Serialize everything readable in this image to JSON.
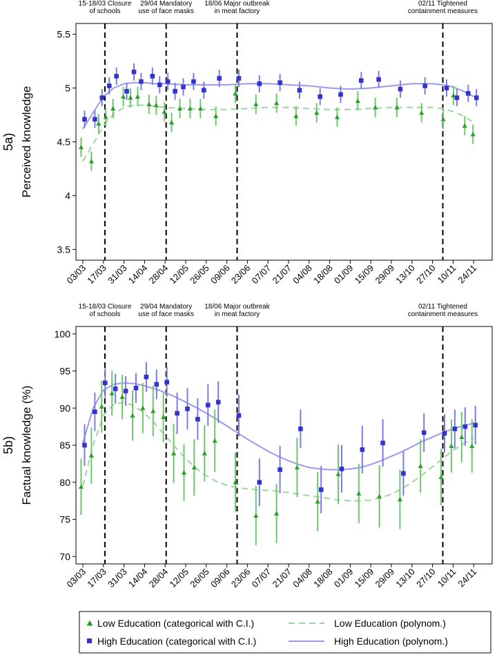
{
  "colors": {
    "low": "#2ca02c",
    "low_ci": "#6cc86c",
    "low_curve": "#9fd49f",
    "high": "#3333cc",
    "high_ci": "#7a7ae8",
    "high_curve": "#9a9ae8"
  },
  "chart_data": [
    {
      "id": "5a",
      "type": "scatter",
      "panel_label": "5a)",
      "ylabel": "Perceived knowledge",
      "ylim": [
        3.4,
        5.6
      ],
      "yticks": [
        3.5,
        4,
        4.5,
        5,
        5.5
      ],
      "ytick_labels": [
        "3.5",
        "4",
        "4.5",
        "5",
        "5.5"
      ],
      "x_labels": [
        "03/03",
        "17/03",
        "31/03",
        "14/04",
        "28/04",
        "12/05",
        "26/05",
        "09/06",
        "23/06",
        "07/07",
        "21/07",
        "04/08",
        "18/08",
        "01/09",
        "15/09",
        "29/09",
        "13/10",
        "27/10",
        "10/11",
        "24/11"
      ],
      "events": [
        {
          "week": 2.15,
          "label": "15-18/03 Closure\nof schools"
        },
        {
          "week": 8.1,
          "label": "29/04 Mandatory\nuse of face masks"
        },
        {
          "week": 15.0,
          "label": "18/06 Major outbreak\nin meat factory"
        },
        {
          "week": 35.0,
          "label": "02/11 Tightened\ncontainment measures"
        }
      ],
      "series": [
        {
          "name": "Low Education",
          "marker": "triangle",
          "x": [
            0,
            1,
            1.7,
            2.4,
            3.1,
            4.1,
            4.8,
            5.5,
            6.6,
            7.3,
            8.1,
            8.8,
            9.6,
            10.6,
            11.6,
            13.1,
            15.0,
            17.0,
            19.0,
            20.9,
            22.9,
            24.9,
            26.9,
            28.6,
            30.7,
            33.1,
            35.2,
            36.2,
            37.3,
            38.1
          ],
          "y": [
            4.45,
            4.32,
            4.67,
            4.73,
            4.81,
            4.92,
            4.91,
            4.92,
            4.85,
            4.84,
            4.78,
            4.68,
            4.81,
            4.81,
            4.81,
            4.74,
            4.95,
            4.85,
            4.86,
            4.74,
            4.77,
            4.73,
            4.88,
            4.82,
            4.82,
            4.77,
            4.71,
            4.93,
            4.65,
            4.57
          ],
          "ci": [
            0.09,
            0.09,
            0.09,
            0.09,
            0.09,
            0.09,
            0.09,
            0.09,
            0.09,
            0.09,
            0.09,
            0.09,
            0.09,
            0.09,
            0.09,
            0.09,
            0.09,
            0.09,
            0.09,
            0.09,
            0.09,
            0.09,
            0.09,
            0.09,
            0.09,
            0.09,
            0.09,
            0.09,
            0.09,
            0.09
          ]
        },
        {
          "name": "High Education",
          "marker": "square",
          "x": [
            0,
            1,
            1.7,
            2.4,
            3.1,
            4.1,
            4.8,
            5.5,
            6.6,
            7.3,
            8.1,
            8.8,
            9.6,
            10.6,
            11.6,
            13.1,
            15.0,
            17.0,
            19.0,
            20.9,
            22.9,
            24.9,
            26.9,
            28.6,
            30.7,
            33.1,
            35.2,
            36.2,
            37.3,
            38.1
          ],
          "y": [
            4.71,
            4.71,
            4.91,
            5.02,
            5.11,
            4.97,
            5.15,
            5.06,
            5.11,
            5.03,
            5.06,
            4.97,
            5.01,
            5.06,
            4.98,
            5.09,
            5.09,
            5.04,
            5.05,
            4.98,
            4.92,
            4.94,
            5.07,
            5.08,
            4.99,
            5.02,
            5.0,
            4.91,
            4.95,
            4.91
          ],
          "ci": [
            0.08,
            0.08,
            0.08,
            0.08,
            0.08,
            0.08,
            0.08,
            0.08,
            0.08,
            0.08,
            0.08,
            0.08,
            0.08,
            0.08,
            0.08,
            0.08,
            0.08,
            0.08,
            0.08,
            0.08,
            0.08,
            0.08,
            0.08,
            0.08,
            0.08,
            0.08,
            0.08,
            0.08,
            0.08,
            0.08
          ]
        }
      ],
      "curves": [
        {
          "name": "Low Education (polynom.)",
          "style": "dashed",
          "x": [
            0,
            1,
            2,
            3,
            4,
            5,
            6,
            7,
            8,
            10,
            12,
            14,
            16,
            18,
            20,
            22,
            24,
            26,
            28,
            30,
            32,
            34,
            35,
            36,
            37,
            38
          ],
          "y": [
            4.32,
            4.48,
            4.65,
            4.76,
            4.82,
            4.84,
            4.84,
            4.83,
            4.82,
            4.81,
            4.8,
            4.8,
            4.81,
            4.82,
            4.82,
            4.81,
            4.8,
            4.8,
            4.81,
            4.82,
            4.82,
            4.82,
            4.81,
            4.78,
            4.74,
            4.68
          ]
        },
        {
          "name": "High Education (polynom.)",
          "style": "solid",
          "x": [
            0,
            1,
            2,
            3,
            4,
            5,
            6,
            7,
            8,
            10,
            12,
            14,
            16,
            18,
            20,
            22,
            24,
            26,
            28,
            30,
            32,
            34,
            35,
            36,
            37,
            38
          ],
          "y": [
            4.62,
            4.77,
            4.92,
            5.0,
            5.04,
            5.05,
            5.05,
            5.04,
            5.04,
            5.03,
            5.03,
            5.03,
            5.04,
            5.04,
            5.03,
            5.02,
            5.0,
            4.99,
            5.0,
            5.02,
            5.04,
            5.04,
            5.03,
            5.01,
            4.97,
            4.92
          ]
        }
      ]
    },
    {
      "id": "5b",
      "type": "scatter",
      "panel_label": "5b)",
      "ylabel": "Factual knowledge (%)",
      "ylim": [
        69,
        101
      ],
      "yticks": [
        70,
        75,
        80,
        85,
        90,
        95,
        100
      ],
      "ytick_labels": [
        "70",
        "75",
        "80",
        "85",
        "90",
        "95",
        "100"
      ],
      "x_labels": [
        "03/03",
        "17/03",
        "31/03",
        "14/04",
        "28/04",
        "12/05",
        "26/05",
        "09/06",
        "23/06",
        "07/07",
        "21/07",
        "04/08",
        "18/08",
        "01/09",
        "15/09",
        "29/09",
        "13/10",
        "27/10",
        "10/11",
        "24/11"
      ],
      "events": [
        {
          "week": 2.15,
          "label": "15-18/03 Closure\nof schools"
        },
        {
          "week": 8.1,
          "label": "29/04 Mandatory\nuse of face masks"
        },
        {
          "week": 15.0,
          "label": "18/06 Major outbreak\nin meat factory"
        },
        {
          "week": 35.0,
          "label": "02/11 Tightened\ncontainment measures"
        }
      ],
      "series": [
        {
          "name": "Low Education",
          "marker": "triangle",
          "x": [
            0,
            1,
            2,
            3,
            4,
            5,
            6,
            7,
            8,
            9,
            10,
            11,
            12,
            13,
            15,
            17,
            19,
            21,
            23,
            25,
            27,
            29,
            31,
            33,
            35,
            36,
            37,
            38
          ],
          "y": [
            79.4,
            83.6,
            90.2,
            92.0,
            91.5,
            89.0,
            90.0,
            89.6,
            88.8,
            83.9,
            81.3,
            82.0,
            83.9,
            85.6,
            80.0,
            75.5,
            75.8,
            82.0,
            77.4,
            81.1,
            78.5,
            78.1,
            77.7,
            82.2,
            80.7,
            84.9,
            86.1,
            84.9
          ],
          "ci": [
            3.8,
            3.8,
            3.5,
            3.0,
            3.0,
            3.4,
            3.4,
            3.4,
            3.4,
            4.0,
            3.8,
            3.8,
            3.8,
            4.2,
            4.0,
            4.0,
            4.0,
            4.0,
            4.0,
            4.0,
            4.0,
            4.2,
            4.0,
            3.6,
            3.8,
            3.6,
            3.4,
            3.6
          ]
        },
        {
          "name": "High Education",
          "marker": "square",
          "x": [
            0,
            1,
            2,
            3,
            4,
            5,
            6,
            7,
            8,
            9,
            10,
            11,
            12,
            13,
            15,
            17,
            19,
            21,
            23,
            25,
            27,
            29,
            31,
            33,
            35,
            36,
            37,
            38
          ],
          "y": [
            85.0,
            89.5,
            93.4,
            92.6,
            92.3,
            92.7,
            94.2,
            93.2,
            93.5,
            89.3,
            89.9,
            88.5,
            90.4,
            90.8,
            89.0,
            80.0,
            81.7,
            87.2,
            79.0,
            81.8,
            84.4,
            85.3,
            81.2,
            86.7,
            86.6,
            87.2,
            87.5,
            87.7
          ],
          "ci": [
            2.8,
            2.6,
            2.0,
            2.0,
            2.0,
            2.0,
            2.0,
            2.0,
            2.0,
            2.8,
            2.8,
            2.8,
            2.8,
            2.8,
            2.8,
            3.2,
            3.2,
            2.6,
            3.2,
            3.2,
            3.2,
            3.2,
            3.0,
            2.6,
            2.6,
            2.6,
            2.6,
            2.6
          ]
        }
      ],
      "curves": [
        {
          "name": "Low Education (polynom.)",
          "style": "dashed",
          "x": [
            0,
            1,
            2,
            3,
            4,
            5,
            6,
            7,
            8,
            9,
            10,
            11,
            12,
            13,
            14,
            15,
            16,
            17,
            18,
            19,
            20,
            21,
            22,
            23,
            24,
            25,
            26,
            27,
            28,
            29,
            30,
            31,
            32,
            33,
            34,
            35,
            36,
            37,
            38
          ],
          "y": [
            79.5,
            85.0,
            89.0,
            90.5,
            90.8,
            90.3,
            89.3,
            87.9,
            86.3,
            84.7,
            83.2,
            81.9,
            80.9,
            80.1,
            79.6,
            79.3,
            79.1,
            79.0,
            78.9,
            78.8,
            78.6,
            78.4,
            78.2,
            78.0,
            77.8,
            77.6,
            77.5,
            77.5,
            77.6,
            77.9,
            78.4,
            79.1,
            80.0,
            81.0,
            82.1,
            83.2,
            84.3,
            85.2,
            86.0
          ]
        },
        {
          "name": "High Education (polynom.)",
          "style": "solid",
          "x": [
            0,
            1,
            2,
            3,
            4,
            5,
            6,
            7,
            8,
            9,
            10,
            11,
            12,
            13,
            14,
            15,
            16,
            17,
            18,
            19,
            20,
            21,
            22,
            23,
            24,
            25,
            26,
            27,
            28,
            29,
            30,
            31,
            32,
            33,
            34,
            35,
            36,
            37,
            38
          ],
          "y": [
            85.3,
            90.0,
            92.4,
            93.2,
            93.4,
            93.3,
            93.0,
            92.6,
            92.1,
            91.5,
            90.8,
            90.1,
            89.3,
            88.5,
            87.6,
            86.7,
            85.8,
            85.0,
            84.2,
            83.5,
            82.9,
            82.4,
            82.0,
            81.8,
            81.7,
            81.7,
            81.8,
            82.0,
            82.4,
            82.9,
            83.5,
            84.1,
            84.8,
            85.5,
            86.1,
            86.7,
            87.2,
            87.6,
            88.0
          ]
        }
      ]
    }
  ],
  "legend": {
    "low_points": "Low Education (categorical with C.I.)",
    "low_curve": "Low Education (polynom.)",
    "high_points": "High Education (categorical with C.I.)",
    "high_curve": "High Education (polynom.)"
  }
}
